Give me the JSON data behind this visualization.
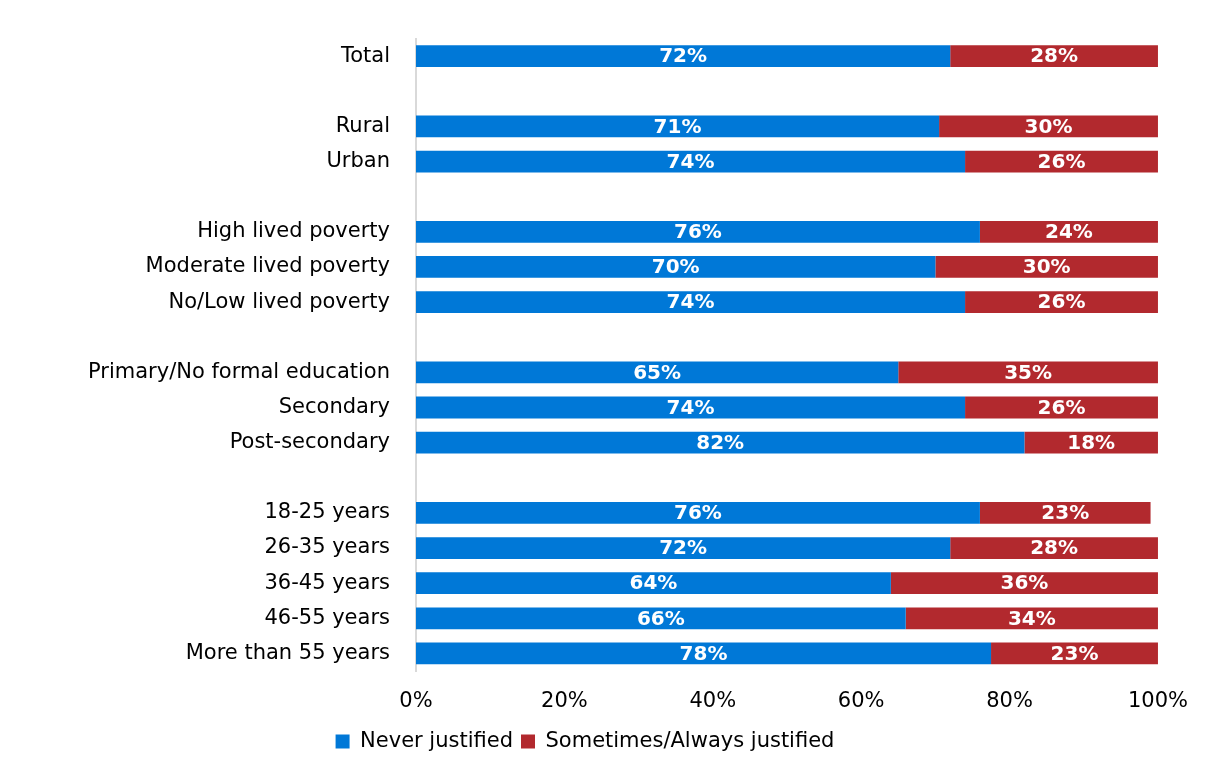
{
  "chart_data": {
    "type": "bar",
    "orientation": "horizontal",
    "stacked": true,
    "categories": [
      "Total",
      null,
      "Rural",
      "Urban",
      null,
      "High lived poverty",
      "Moderate lived poverty",
      "No/Low lived poverty",
      null,
      "Primary/No formal education",
      "Secondary",
      "Post-secondary",
      null,
      "18-25 years",
      "26-35 years",
      "36-45 years",
      "46-55 years",
      "More than 55 years"
    ],
    "series": [
      {
        "name": "Never justified",
        "color": "#0078d7",
        "values": [
          72,
          null,
          70.5,
          74,
          null,
          76,
          70,
          74,
          null,
          65,
          74,
          82,
          null,
          76,
          72,
          64,
          66,
          77.5
        ],
        "value_labels": [
          "72%",
          null,
          "71%",
          "74%",
          null,
          "76%",
          "70%",
          "74%",
          null,
          "65%",
          "74%",
          "82%",
          null,
          "76%",
          "72%",
          "64%",
          "66%",
          "78%"
        ]
      },
      {
        "name": "Sometimes/Always justified",
        "color": "#b2292e",
        "values": [
          28,
          null,
          29.5,
          26,
          null,
          24,
          30,
          26,
          null,
          35,
          26,
          18,
          null,
          23,
          28,
          36,
          34,
          22.5
        ],
        "value_labels": [
          "28%",
          null,
          "30%",
          "26%",
          null,
          "24%",
          "30%",
          "26%",
          null,
          "35%",
          "26%",
          "18%",
          null,
          "23%",
          "28%",
          "36%",
          "34%",
          "23%"
        ]
      }
    ],
    "xlim": [
      0,
      100
    ],
    "xticks": [
      {
        "value": 0,
        "label": "0%"
      },
      {
        "value": 20,
        "label": "20%"
      },
      {
        "value": 40,
        "label": "40%"
      },
      {
        "value": 60,
        "label": "60%"
      },
      {
        "value": 80,
        "label": "80%"
      },
      {
        "value": 100,
        "label": "100%"
      }
    ],
    "legend": "bottom"
  }
}
